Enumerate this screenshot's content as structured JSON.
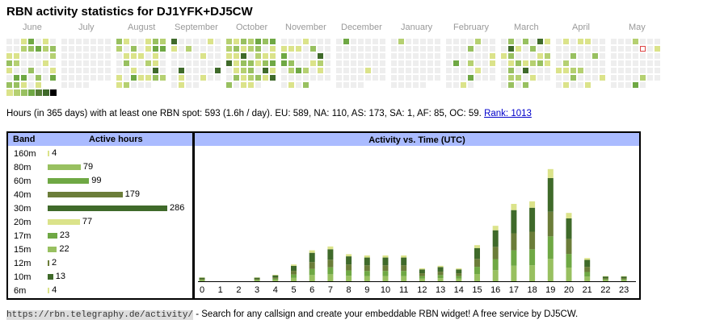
{
  "header": {
    "title": "RBN activity statistics for DJ1YFK+DJ5CW"
  },
  "calendar": {
    "months": [
      "June",
      "July",
      "August",
      "September",
      "October",
      "November",
      "December",
      "January",
      "February",
      "March",
      "April",
      "May"
    ],
    "legend_colors": [
      "#dbe38a",
      "#b5d071",
      "#98c060",
      "#6fa844",
      "#567e36",
      "#3f6a2a",
      "#000000"
    ],
    "empty_color": "#eeeeee",
    "today_marker_color": "#dd4444"
  },
  "summary": {
    "text": "Hours (in 365 days) with at least one RBN spot: 593 (1.6h / day). EU: 589, NA: 110, AS: 173, SA: 1, AF: 85, OC: 59. ",
    "rank_link": "Rank: 1013"
  },
  "bands": {
    "header_band": "Band",
    "header_hours": "Active hours",
    "rows": [
      {
        "name": "160m",
        "hours": "4",
        "value": 4,
        "color": "#dbe38a"
      },
      {
        "name": "80m",
        "hours": "79",
        "value": 79,
        "color": "#98c060"
      },
      {
        "name": "60m",
        "hours": "99",
        "value": 99,
        "color": "#6fa844"
      },
      {
        "name": "40m",
        "hours": "179",
        "value": 179,
        "color": "#6b7d39"
      },
      {
        "name": "30m",
        "hours": "286",
        "value": 286,
        "color": "#3f6a2a"
      },
      {
        "name": "20m",
        "hours": "77",
        "value": 77,
        "color": "#dbe38a"
      },
      {
        "name": "17m",
        "hours": "23",
        "value": 23,
        "color": "#6fa844"
      },
      {
        "name": "15m",
        "hours": "22",
        "value": 22,
        "color": "#98c060"
      },
      {
        "name": "12m",
        "hours": "2",
        "value": 2,
        "color": "#6b7d39"
      },
      {
        "name": "10m",
        "hours": "13",
        "value": 13,
        "color": "#3f6a2a"
      },
      {
        "name": "6m",
        "hours": "4",
        "value": 4,
        "color": "#dbe38a"
      }
    ]
  },
  "chart_data": {
    "type": "bar",
    "title": "Activity vs. Time (UTC)",
    "categories": [
      "0",
      "1",
      "2",
      "3",
      "4",
      "5",
      "6",
      "7",
      "8",
      "9",
      "10",
      "11",
      "12",
      "13",
      "14",
      "15",
      "16",
      "17",
      "18",
      "19",
      "20",
      "21",
      "22",
      "23"
    ],
    "values": [
      3,
      0,
      0,
      3,
      5,
      13,
      24,
      27,
      21,
      20,
      20,
      20,
      10,
      12,
      10,
      28,
      43,
      60,
      62,
      87,
      53,
      18,
      4,
      4
    ],
    "series_colors": [
      "#98c060",
      "#6fa844",
      "#6b7d39",
      "#3f6a2a",
      "#dbe38a"
    ],
    "ylim": [
      0,
      100
    ]
  },
  "footer": {
    "url": "https://rbn.telegraphy.de/activity/",
    "text": " - Search for any callsign and create your embeddable RBN widget! A free service by DJ5CW."
  }
}
